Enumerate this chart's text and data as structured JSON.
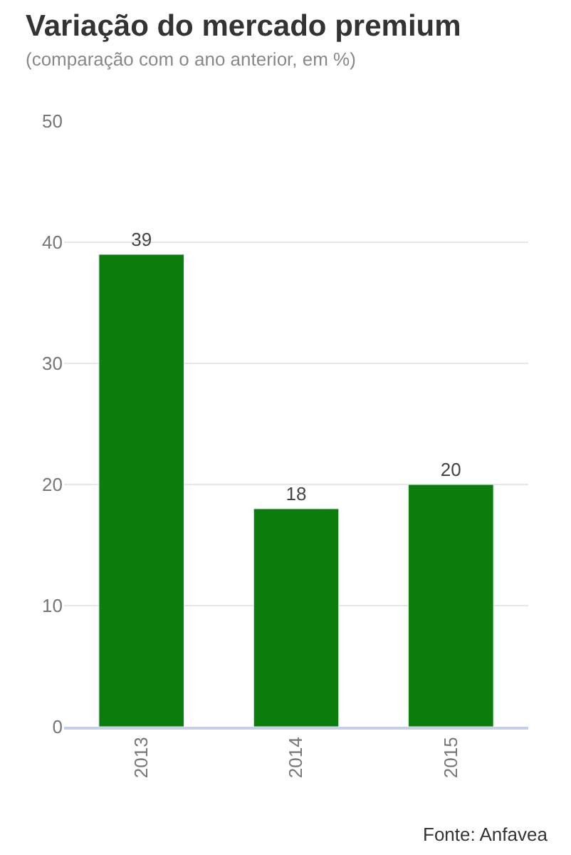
{
  "chart_data": {
    "type": "bar",
    "title": "Variação do mercado premium",
    "subtitle": "(comparação com o ano anterior, em %)",
    "categories": [
      "2013",
      "2014",
      "2015"
    ],
    "values": [
      39,
      18,
      20
    ],
    "color": "#0a7d0a",
    "ylim": [
      0,
      50
    ],
    "yticks": [
      0,
      10,
      20,
      30,
      40,
      50
    ],
    "grid": "y",
    "data_labels": true,
    "annotations": [
      "Fonte: Anfavea"
    ]
  }
}
